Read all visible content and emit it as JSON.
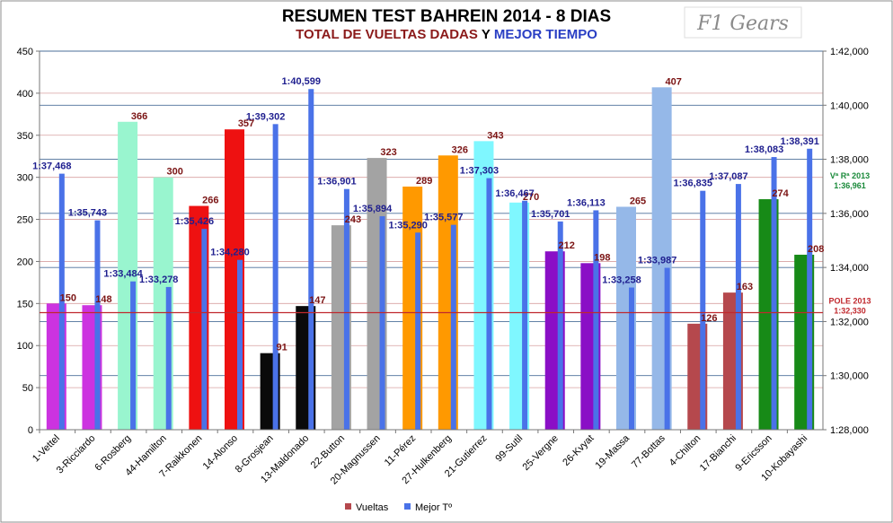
{
  "title": "RESUMEN TEST BAHREIN 2014 - 8 DIAS",
  "subtitle_part1": "TOTAL DE VUELTAS DADAS",
  "subtitle_and": "Y",
  "subtitle_part2": "MEJOR TIEMPO",
  "logo_text": "F1 Gears",
  "colors": {
    "subtitle1": "#8b1a1a",
    "subtitle2": "#2a3fc4",
    "time_bar": "#4a72e8",
    "pole_line": "#c0282d",
    "ref_line": "#4b6f9a"
  },
  "chart_data": {
    "type": "bar",
    "categories": [
      "1-Vettel",
      "3-Ricciardo",
      "6-Rosberg",
      "44-Hamilton",
      "7-Raikkonen",
      "14-Alonso",
      "8-Grosjean",
      "13-Maldonado",
      "22-Button",
      "20-Magnussen",
      "11-Pérez",
      "27-Hulkenberg",
      "21-Gutierrez",
      "99-Sutil",
      "25-Vergne",
      "26-Kvyat",
      "19-Massa",
      "77-Bottas",
      "4-Chilton",
      "17-Bianchi",
      "9-Ericsson",
      "10-Kobayashi"
    ],
    "series": [
      {
        "name": "Vueltas",
        "axis": "left",
        "values": [
          150,
          148,
          366,
          300,
          266,
          357,
          91,
          147,
          243,
          323,
          289,
          326,
          343,
          270,
          212,
          198,
          265,
          407,
          126,
          163,
          274,
          208
        ],
        "labels": [
          "150",
          "148",
          "366",
          "300",
          "266",
          "357",
          "91",
          "147",
          "243",
          "323",
          "289",
          "326",
          "343",
          "270",
          "212",
          "198",
          "265",
          "407",
          "126",
          "163",
          "274",
          "208"
        ],
        "colors": [
          "#cc33e0",
          "#cc33e0",
          "#99f5cf",
          "#99f5cf",
          "#ee1111",
          "#ee1111",
          "#0a0a0a",
          "#0a0a0a",
          "#a3a3a3",
          "#a3a3a3",
          "#ff9900",
          "#ff9900",
          "#7ff7ff",
          "#7ff7ff",
          "#8a0fc6",
          "#8a0fc6",
          "#95b8e8",
          "#95b8e8",
          "#b5484d",
          "#b5484d",
          "#178a17",
          "#178a17"
        ],
        "legend_color": "#b5484d"
      },
      {
        "name": "Mejor Tº",
        "axis": "right",
        "values_seconds": [
          97.468,
          95.743,
          93.484,
          93.278,
          95.426,
          94.28,
          99.302,
          100.599,
          96.901,
          95.894,
          95.29,
          95.577,
          97.303,
          96.467,
          95.701,
          96.113,
          93.258,
          93.987,
          96.835,
          97.087,
          98.083,
          98.391
        ],
        "labels": [
          "1:37,468",
          "1:35,743",
          "1:33,484",
          "1:33,278",
          "1:35,426",
          "1:34,280",
          "1:39,302",
          "1:40,599",
          "1:36,901",
          "1:35,894",
          "1:35,290",
          "1:35,577",
          "1:37,303",
          "1:36,467",
          "1:35,701",
          "1:36,113",
          "1:33,258",
          "1:33,987",
          "1:36,835",
          "1:37,087",
          "1:38,083",
          "1:38,391"
        ],
        "legend_color": "#4a72e8"
      }
    ],
    "ylim_left": [
      0,
      450
    ],
    "yticks_left": [
      "0",
      "50",
      "100",
      "150",
      "200",
      "250",
      "300",
      "350",
      "400",
      "450"
    ],
    "ylim_right_seconds": [
      88,
      102
    ],
    "yticks_right": [
      "1:28,000",
      "1:30,000",
      "1:32,000",
      "1:34,000",
      "1:36,000",
      "1:38,000",
      "1:40,000",
      "1:42,000"
    ],
    "reference_lines": [
      {
        "label_line1": "POLE 2013",
        "label_line2": "1:32,330",
        "value_seconds": 92.33,
        "color": "#c0282d"
      },
      {
        "label_line1": "Vª Rª 2013",
        "label_line2": "1:36,961",
        "value_seconds": 96.961,
        "color": "#1a8a3a"
      }
    ],
    "grid": true,
    "legend": "bottom"
  }
}
